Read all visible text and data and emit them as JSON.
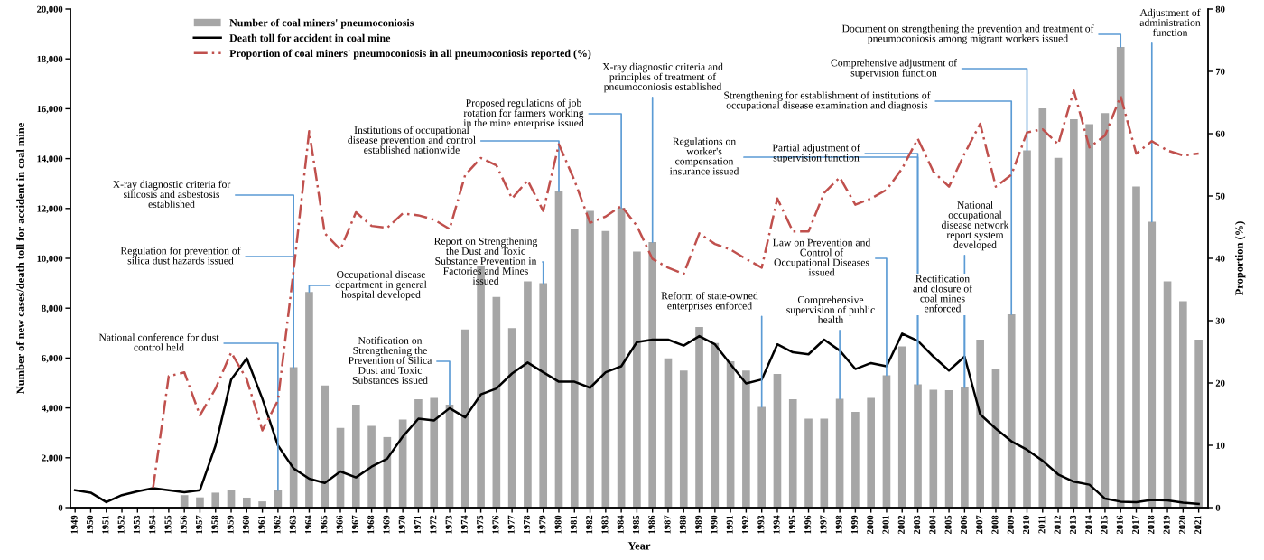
{
  "chart_data": {
    "type": "bar",
    "xlabel": "Year",
    "ylabel": "Number of new cases/death toll for accident in coal mine",
    "y2label": "Proportion (%)",
    "categories": [
      "1949",
      "1950",
      "1951",
      "1952",
      "1953",
      "1954",
      "1955",
      "1956",
      "1957",
      "1958",
      "1959",
      "1960",
      "1961",
      "1962",
      "1963",
      "1964",
      "1965",
      "1966",
      "1967",
      "1968",
      "1969",
      "1970",
      "1971",
      "1972",
      "1973",
      "1974",
      "1975",
      "1976",
      "1977",
      "1978",
      "1979",
      "1980",
      "1981",
      "1982",
      "1983",
      "1984",
      "1985",
      "1986",
      "1987",
      "1988",
      "1989",
      "1990",
      "1991",
      "1992",
      "1993",
      "1994",
      "1995",
      "1996",
      "1997",
      "1998",
      "1999",
      "2000",
      "2001",
      "2002",
      "2003",
      "2004",
      "2005",
      "2006",
      "2007",
      "2008",
      "2009",
      "2010",
      "2011",
      "2012",
      "2013",
      "2014",
      "2015",
      "2016",
      "2017",
      "2018",
      "2019",
      "2020",
      "2021"
    ],
    "series": [
      {
        "name": "Number of coal miners' pneumoconiosis",
        "type": "bar",
        "color": "#a6a6a6",
        "values": [
          null,
          null,
          null,
          null,
          null,
          null,
          null,
          500,
          410,
          600,
          700,
          400,
          250,
          700,
          5630,
          8650,
          4900,
          3200,
          4130,
          3280,
          2830,
          3530,
          4350,
          4400,
          4130,
          7150,
          9700,
          8450,
          7200,
          9080,
          9000,
          12680,
          11160,
          11900,
          11100,
          12030,
          10270,
          10650,
          5990,
          5500,
          7250,
          6600,
          5870,
          5500,
          4040,
          5360,
          4350,
          3570,
          3570,
          4370,
          3840,
          4400,
          5310,
          6470,
          4950,
          4730,
          4710,
          4830,
          6740,
          5560,
          7750,
          14330,
          16010,
          14030,
          15580,
          15380,
          15820,
          18480,
          12880,
          11470,
          9080,
          8280,
          6740
        ]
      },
      {
        "name": "Death toll for accident in coal mine",
        "type": "line",
        "color": "#000000",
        "line_style": "solid",
        "values": [
          700,
          600,
          220,
          500,
          650,
          780,
          700,
          620,
          700,
          2490,
          5140,
          5990,
          4370,
          2490,
          1570,
          1160,
          990,
          1450,
          1210,
          1640,
          1960,
          2850,
          3570,
          3500,
          3990,
          3620,
          4540,
          4780,
          5380,
          5820,
          5430,
          5050,
          5050,
          4810,
          5430,
          5670,
          6640,
          6740,
          6740,
          6500,
          6880,
          6550,
          5750,
          4980,
          5140,
          6550,
          6230,
          6150,
          6740,
          6300,
          5560,
          5800,
          5670,
          6980,
          6690,
          6060,
          5500,
          6060,
          3740,
          3170,
          2660,
          2320,
          1880,
          1330,
          1040,
          920,
          360,
          240,
          220,
          310,
          290,
          200,
          150
        ]
      },
      {
        "name": "Proportion of coal miners' pneumoconiosis in all pneumoconiosis reported (%)",
        "type": "line",
        "axis": "y2",
        "color": "#c0504d",
        "line_style": "dashed",
        "values": [
          null,
          null,
          null,
          null,
          null,
          3.2,
          21.1,
          21.7,
          14.8,
          19.1,
          24.9,
          20.6,
          12.4,
          17.2,
          38,
          60.4,
          44.0,
          41.4,
          47.4,
          45.2,
          44.9,
          47.2,
          46.9,
          46.2,
          44.7,
          53.4,
          56.1,
          54.9,
          49.6,
          52.5,
          47.6,
          58.3,
          52.5,
          45.7,
          46.7,
          48.4,
          45.2,
          39.9,
          38.5,
          37.5,
          44.0,
          42.3,
          41.4,
          39.9,
          38.5,
          49.6,
          44.3,
          44.3,
          50.5,
          53.0,
          48.6,
          49.6,
          51.0,
          54.4,
          59.2,
          53.9,
          51.5,
          56.8,
          61.6,
          51.5,
          53.4,
          60.2,
          60.7,
          58.3,
          66.9,
          57.8,
          59.7,
          66.0,
          56.8,
          58.8,
          57.3,
          56.5,
          56.8
        ]
      }
    ],
    "ylim": [
      0,
      20000
    ],
    "yticks": [
      0,
      {
        "value": 2000,
        "label": "2,000"
      },
      {
        "value": 4000,
        "label": "4,000"
      },
      {
        "value": 6000,
        "label": "6,000"
      },
      {
        "value": 8000,
        "label": "8,000"
      },
      {
        "value": 10000,
        "label": "10,000"
      },
      {
        "value": 12000,
        "label": "12,000"
      },
      {
        "value": 14000,
        "label": "14,000"
      },
      {
        "value": 16000,
        "label": "16,000"
      },
      {
        "value": 18000,
        "label": "18,000"
      },
      {
        "value": 20000,
        "label": "20,000"
      }
    ],
    "y2lim": [
      0,
      80
    ],
    "y2ticks": [
      0,
      10,
      20,
      30,
      40,
      50,
      60,
      70,
      80
    ],
    "grid": false,
    "legend": "top left",
    "annotations": [
      {
        "text": "National conference for dust control held",
        "x": "1962",
        "y": 700
      },
      {
        "text": "Regulation for prevention of silica dust hazards issued",
        "x": "1963",
        "y": 5630
      },
      {
        "text": "X-ray diagnostic criteria for silicosis and asbestosis established",
        "x": "1963",
        "y": 5630
      },
      {
        "text": "Institutions of occupational disease prevention and control established nationwide",
        "x": "1980",
        "y": 12680
      },
      {
        "text": "Proposed regulations of job rotation for farmers working in the mine enterprise issued",
        "x": "1984",
        "y": 12030
      },
      {
        "text": "Occupational disease department in general hospital developed",
        "x": "1964",
        "y": 8650
      },
      {
        "text": "Notification on Strengthening the Prevention of Silica Dust and Toxic Substances issued",
        "x": "1973",
        "y": 4130
      },
      {
        "text": "Report on Strengthening the Dust and Toxic Substance Prevention in Factories and Mines issued",
        "x": "1979",
        "y": 9000
      },
      {
        "text": "X-ray diagnostic criteria and principles of treatment of pneumoconiosis established",
        "x": "1986",
        "y": 10650
      },
      {
        "text": "Regulations on worker's compensation insurance issued",
        "x": "2003",
        "y": 4950
      },
      {
        "text": "Partial adjustment of supervision function",
        "x": "2003",
        "y": 4950
      },
      {
        "text": "Strengthening for establishment of institutions of occupational disease examination and diagnosis",
        "x": "2009",
        "y": 7750
      },
      {
        "text": "Comprehensive adjustment of supervision function",
        "x": "2010",
        "y": 14330
      },
      {
        "text": "Document on strengthening the prevention and treatment of pneumoconiosis among migrant workers issued",
        "x": "2016",
        "y": 18480
      },
      {
        "text": "Adjustment of administration function",
        "x": "2018",
        "y": 11470
      },
      {
        "text": "National occupational disease network report system developed",
        "x": "2006",
        "y": 4830
      },
      {
        "text": "Rectification and closure of coal mines enforced",
        "x": "2006",
        "y": 4830
      },
      {
        "text": "Reform of state-owned enterprises enforced",
        "x": "1993",
        "y": 4040
      },
      {
        "text": "Comprehensive supervision of public health",
        "x": "1998",
        "y": 4370
      },
      {
        "text": "Law on Prevention and Control of Occupational Diseases issued",
        "x": "2001",
        "y": 5310
      }
    ]
  }
}
